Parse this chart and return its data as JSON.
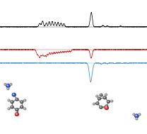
{
  "figsize": [
    2.08,
    1.89
  ],
  "dpi": 100,
  "bg_color": "#ffffff",
  "black_baseline": 0.8,
  "red_baseline": 0.63,
  "blue_baseline": 0.53,
  "black_color": "#111111",
  "red_color": "#cc1111",
  "blue_color": "#5599cc",
  "xlim": [
    0,
    1
  ],
  "ylim": [
    0,
    1
  ],
  "spectra_lw_black": 0.55,
  "spectra_lw_red": 0.55,
  "spectra_lw_blue": 0.65
}
